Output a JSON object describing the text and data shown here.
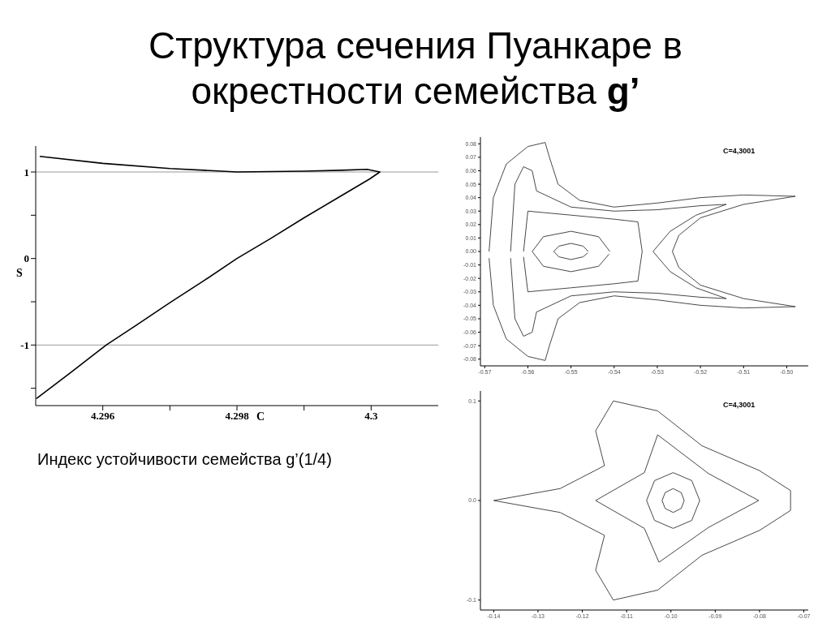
{
  "chart_data": [
    {
      "type": "line",
      "title": "Структура сечения Пуанкаре в окрестности семейства g’",
      "xlabel": "C",
      "ylabel": "S",
      "annotations": [
        "Индекс устойчивости семейства g’(1/4)"
      ],
      "xlim": [
        4.295,
        4.301
      ],
      "ylim": [
        -1.7,
        1.3
      ],
      "xticks": [
        4.296,
        {
          "value": 4.297,
          "label": null
        },
        4.298,
        {
          "value": 4.299,
          "label": null
        },
        4.3
      ],
      "yticks": [
        {
          "value": -1.5,
          "label": null
        },
        -1,
        {
          "value": -0.5,
          "label": null
        },
        0,
        {
          "value": 0.5,
          "label": null
        },
        1
      ],
      "ref_lines": [
        {
          "axis": "y",
          "value": 1,
          "color": "#999999"
        },
        {
          "axis": "y",
          "value": -1,
          "color": "#999999"
        }
      ],
      "series": [
        {
          "color": "#000000",
          "x": [
            4.29506,
            4.296,
            4.297,
            4.298,
            4.299,
            4.29956,
            4.29994,
            4.30013,
            4.29998,
            4.2995,
            4.299,
            4.2985,
            4.298,
            4.2975,
            4.297,
            4.2965,
            4.29605,
            4.2955,
            4.29501
          ],
          "values": [
            1.18,
            1.1,
            1.04,
            1.0,
            1.01,
            1.02,
            1.03,
            1.0,
            0.92,
            0.7,
            0.47,
            0.23,
            0,
            -0.26,
            -0.51,
            -0.77,
            -1,
            -1.33,
            -1.62
          ]
        }
      ]
    },
    {
      "type": "line",
      "annotations": [
        "C=4,3001"
      ],
      "xlim": [
        -0.571,
        -0.495
      ],
      "ylim": [
        -0.085,
        0.085
      ],
      "xticks": [
        -0.57,
        -0.56,
        -0.55,
        -0.54,
        -0.53,
        -0.52,
        -0.51,
        {
          "value": -0.5,
          "label": "-0.50"
        }
      ],
      "yticks": [
        -0.08,
        -0.07,
        -0.06,
        -0.05,
        -0.04,
        -0.03,
        -0.02,
        -0.01,
        {
          "value": 0,
          "label": "0.00"
        },
        0.01,
        0.02,
        0.03,
        0.04,
        0.05,
        0.06,
        0.07,
        0.08
      ],
      "series": [
        {
          "color": "#333333",
          "x": [
            -0.569,
            -0.568,
            -0.565,
            -0.56,
            -0.556,
            -0.555,
            -0.553,
            -0.548,
            -0.54,
            -0.53,
            -0.52,
            -0.51,
            -0.498,
            -0.51,
            -0.52,
            -0.525,
            -0.5265,
            -0.525,
            -0.52,
            -0.51,
            -0.498,
            -0.51,
            -0.52,
            -0.53,
            -0.54,
            -0.548,
            -0.553,
            -0.555,
            -0.556,
            -0.56,
            -0.565,
            -0.568,
            -0.569
          ],
          "values": [
            0,
            0.04,
            0.065,
            0.078,
            0.081,
            0.07,
            0.05,
            0.038,
            0.033,
            0.036,
            0.04,
            0.042,
            0.041,
            0.035,
            0.025,
            0.012,
            0,
            -0.012,
            -0.025,
            -0.035,
            -0.041,
            -0.042,
            -0.04,
            -0.036,
            -0.033,
            -0.038,
            -0.05,
            -0.07,
            -0.081,
            -0.078,
            -0.065,
            -0.04,
            -0.005
          ]
        },
        {
          "color": "#333333",
          "x": [
            -0.564,
            -0.563,
            -0.561,
            -0.559,
            -0.558,
            -0.55,
            -0.54,
            -0.53,
            -0.52,
            -0.514,
            -0.521,
            -0.527,
            -0.531,
            -0.527,
            -0.521,
            -0.514,
            -0.52,
            -0.53,
            -0.54,
            -0.55,
            -0.558,
            -0.559,
            -0.561,
            -0.563,
            -0.564
          ],
          "values": [
            0,
            0.05,
            0.063,
            0.06,
            0.045,
            0.033,
            0.03,
            0.031,
            0.034,
            0.035,
            0.027,
            0.015,
            0,
            -0.015,
            -0.027,
            -0.035,
            -0.034,
            -0.031,
            -0.03,
            -0.033,
            -0.045,
            -0.06,
            -0.063,
            -0.05,
            -0.005
          ]
        },
        {
          "color": "#333333",
          "x": [
            -0.561,
            -0.56,
            -0.55,
            -0.54,
            -0.5345,
            -0.5335,
            -0.5345,
            -0.54,
            -0.55,
            -0.56,
            -0.561
          ],
          "values": [
            0,
            0.03,
            0.027,
            0.024,
            0.022,
            0,
            -0.022,
            -0.024,
            -0.027,
            -0.03,
            -0.004
          ]
        },
        {
          "color": "#333333",
          "x": [
            -0.541,
            -0.5436,
            -0.55,
            -0.5564,
            -0.559,
            -0.5564,
            -0.55,
            -0.5436,
            -0.5412
          ],
          "values": [
            0,
            0.011,
            0.015,
            0.011,
            0,
            -0.011,
            -0.015,
            -0.011,
            -0.002
          ]
        },
        {
          "color": "#333333",
          "x": [
            -0.546,
            -0.5472,
            -0.55,
            -0.5528,
            -0.554,
            -0.5528,
            -0.55,
            -0.5472,
            -0.5461
          ],
          "values": [
            0,
            0.004,
            0.006,
            0.004,
            0,
            -0.004,
            -0.006,
            -0.004,
            -0.001
          ]
        }
      ]
    },
    {
      "type": "line",
      "annotations": [
        "C=4,3001"
      ],
      "xlim": [
        -0.143,
        -0.069
      ],
      "ylim": [
        -0.11,
        0.11
      ],
      "xticks": [
        -0.14,
        -0.13,
        -0.12,
        -0.11,
        {
          "value": -0.1,
          "label": "-0.10"
        },
        -0.09,
        -0.08,
        -0.07
      ],
      "yticks": [
        -0.1,
        {
          "value": 0,
          "label": "0.0"
        },
        0.1
      ],
      "series": [
        {
          "color": "#333333",
          "x": [
            -0.14,
            -0.125,
            -0.115,
            -0.117,
            -0.113,
            -0.103,
            -0.093,
            -0.08,
            -0.073
          ],
          "values": [
            0,
            0.012,
            0.035,
            0.07,
            0.1,
            0.09,
            0.055,
            0.03,
            0.01
          ]
        },
        {
          "color": "#333333",
          "x": [
            -0.073,
            -0.073,
            -0.08,
            -0.093,
            -0.103,
            -0.113,
            -0.117,
            -0.115,
            -0.125,
            -0.14
          ],
          "values": [
            0.01,
            -0.01,
            -0.03,
            -0.055,
            -0.09,
            -0.1,
            -0.07,
            -0.035,
            -0.012,
            0
          ]
        },
        {
          "color": "#333333",
          "x": [
            -0.117,
            -0.106,
            -0.103,
            -0.0915,
            -0.0802
          ],
          "values": [
            0,
            0.028,
            0.066,
            0.027,
            0
          ]
        },
        {
          "color": "#333333",
          "x": [
            -0.0802,
            -0.0915,
            -0.1027,
            -0.106,
            -0.117
          ],
          "values": [
            0,
            -0.027,
            -0.062,
            -0.028,
            0
          ]
        },
        {
          "color": "#333333",
          "x": [
            -0.0935,
            -0.0953,
            -0.0995,
            -0.1037,
            -0.1055
          ],
          "values": [
            0,
            0.02,
            0.028,
            0.02,
            0
          ]
        },
        {
          "color": "#333333",
          "x": [
            -0.1055,
            -0.1037,
            -0.0995,
            -0.0953,
            -0.0935
          ],
          "values": [
            0,
            -0.02,
            -0.028,
            -0.02,
            0
          ]
        },
        {
          "color": "#333333",
          "x": [
            -0.097,
            -0.0977,
            -0.0995,
            -0.1013,
            -0.102
          ],
          "values": [
            0,
            0.008,
            0.012,
            0.008,
            0
          ]
        },
        {
          "color": "#333333",
          "x": [
            -0.102,
            -0.1013,
            -0.0995,
            -0.0977,
            -0.097
          ],
          "values": [
            0,
            -0.008,
            -0.012,
            -0.008,
            0
          ]
        }
      ]
    }
  ]
}
